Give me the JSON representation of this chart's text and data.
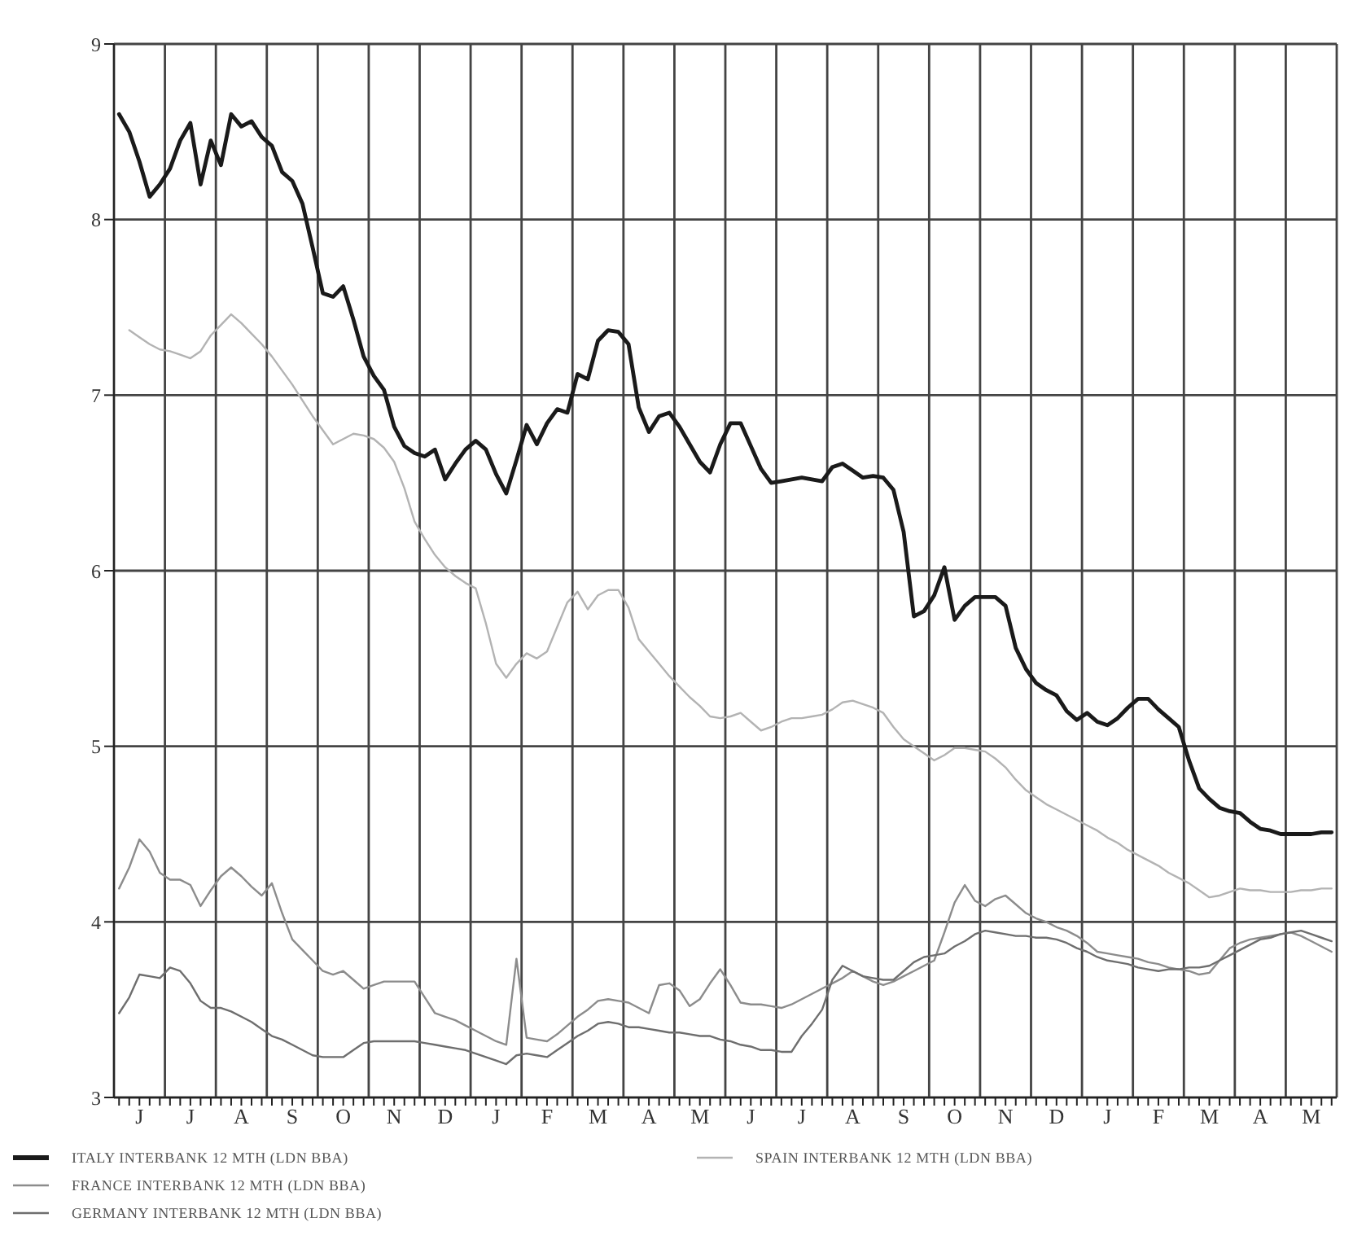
{
  "chart_data": {
    "type": "line",
    "ylim": [
      3,
      9
    ],
    "yticks": [
      3,
      4,
      5,
      6,
      7,
      8,
      9
    ],
    "categories": [
      null,
      null,
      "J",
      null,
      null,
      null,
      null,
      "J",
      null,
      null,
      null,
      null,
      "A",
      null,
      null,
      null,
      null,
      "S",
      null,
      null,
      null,
      null,
      "O",
      null,
      null,
      null,
      null,
      "N",
      null,
      null,
      null,
      null,
      "D",
      null,
      null,
      null,
      null,
      "J",
      null,
      null,
      null,
      null,
      "F",
      null,
      null,
      null,
      null,
      "M",
      null,
      null,
      null,
      null,
      "A",
      null,
      null,
      null,
      null,
      "M",
      null,
      null,
      null,
      null,
      "J",
      null,
      null,
      null,
      null,
      "J",
      null,
      null,
      null,
      null,
      "A",
      null,
      null,
      null,
      null,
      "S",
      null,
      null,
      null,
      null,
      "O",
      null,
      null,
      null,
      null,
      "N",
      null,
      null,
      null,
      null,
      "D",
      null,
      null,
      null,
      null,
      "J",
      null,
      null,
      null,
      null,
      "F",
      null,
      null,
      null,
      null,
      "M",
      null,
      null,
      null,
      null,
      "A",
      null,
      null,
      null,
      null,
      "M",
      null,
      null
    ],
    "grid": true,
    "legend": "bottom",
    "marker": "none",
    "line_style": "solid",
    "series": [
      {
        "name": "ITALY INTERBANK 12 MTH (LDN BBA)",
        "color": "#1a1a1a",
        "values": [
          8.6,
          8.5,
          8.33,
          8.13,
          8.2,
          8.29,
          8.45,
          8.55,
          8.2,
          8.45,
          8.31,
          8.6,
          8.53,
          8.56,
          8.47,
          8.42,
          8.27,
          8.22,
          8.09,
          7.84,
          7.58,
          7.56,
          7.62,
          7.43,
          7.22,
          7.11,
          7.03,
          6.82,
          6.71,
          6.67,
          6.65,
          6.69,
          6.52,
          6.61,
          6.69,
          6.74,
          6.69,
          6.55,
          6.44,
          6.63,
          6.83,
          6.72,
          6.84,
          6.92,
          6.9,
          7.12,
          7.09,
          7.31,
          7.37,
          7.36,
          7.29,
          6.93,
          6.79,
          6.88,
          6.9,
          6.82,
          6.72,
          6.62,
          6.56,
          6.72,
          6.84,
          6.84,
          6.71,
          6.58,
          6.5,
          6.51,
          6.52,
          6.53,
          6.52,
          6.51,
          6.59,
          6.61,
          6.57,
          6.53,
          6.54,
          6.53,
          6.46,
          6.22,
          5.74,
          5.77,
          5.86,
          6.02,
          5.72,
          5.8,
          5.85,
          5.85,
          5.85,
          5.8,
          5.56,
          5.44,
          5.36,
          5.32,
          5.29,
          5.2,
          5.15,
          5.19,
          5.14,
          5.12,
          5.16,
          5.22,
          5.27,
          5.27,
          5.21,
          5.16,
          5.11,
          4.92,
          4.76,
          4.7,
          4.65,
          4.63,
          4.62,
          4.57,
          4.53,
          4.52,
          4.5,
          4.5,
          4.5,
          4.5,
          4.51,
          4.51
        ]
      },
      {
        "name": "FRANCE INTERBANK 12 MTH (LDN BBA)",
        "color": "#8c8c8c",
        "values": [
          4.19,
          4.31,
          4.47,
          4.4,
          4.28,
          4.24,
          4.24,
          4.21,
          4.09,
          4.18,
          4.26,
          4.31,
          4.26,
          4.2,
          4.15,
          4.22,
          4.05,
          3.9,
          3.84,
          3.78,
          3.72,
          3.7,
          3.72,
          3.67,
          3.62,
          3.64,
          3.66,
          3.66,
          3.66,
          3.66,
          3.57,
          3.48,
          3.46,
          3.44,
          3.41,
          3.38,
          3.35,
          3.32,
          3.3,
          3.79,
          3.34,
          3.33,
          3.32,
          3.36,
          3.41,
          3.46,
          3.5,
          3.55,
          3.56,
          3.55,
          3.54,
          3.51,
          3.48,
          3.64,
          3.65,
          3.61,
          3.52,
          3.56,
          3.65,
          3.73,
          3.64,
          3.54,
          3.53,
          3.53,
          3.52,
          3.51,
          3.53,
          3.56,
          3.59,
          3.62,
          3.65,
          3.68,
          3.72,
          3.69,
          3.66,
          3.64,
          3.66,
          3.69,
          3.72,
          3.75,
          3.78,
          3.94,
          4.11,
          4.21,
          4.12,
          4.09,
          4.13,
          4.15,
          4.1,
          4.05,
          4.02,
          4.0,
          3.97,
          3.95,
          3.92,
          3.88,
          3.83,
          3.82,
          3.81,
          3.8,
          3.79,
          3.77,
          3.76,
          3.74,
          3.73,
          3.72,
          3.7,
          3.71,
          3.78,
          3.85,
          3.88,
          3.9,
          3.91,
          3.92,
          3.93,
          3.94,
          3.92,
          3.89,
          3.86,
          3.83
        ]
      },
      {
        "name": "GERMANY INTERBANK 12 MTH (LDN BBA)",
        "color": "#6e6e6e",
        "values": [
          3.48,
          3.57,
          3.7,
          3.69,
          3.68,
          3.74,
          3.72,
          3.65,
          3.55,
          3.51,
          3.51,
          3.49,
          3.46,
          3.43,
          3.39,
          3.35,
          3.33,
          3.3,
          3.27,
          3.24,
          3.23,
          3.23,
          3.23,
          3.27,
          3.31,
          3.32,
          3.32,
          3.32,
          3.32,
          3.32,
          3.31,
          3.3,
          3.29,
          3.28,
          3.27,
          3.25,
          3.23,
          3.21,
          3.19,
          3.24,
          3.25,
          3.24,
          3.23,
          3.27,
          3.31,
          3.35,
          3.38,
          3.42,
          3.43,
          3.42,
          3.4,
          3.4,
          3.39,
          3.38,
          3.37,
          3.37,
          3.36,
          3.35,
          3.35,
          3.33,
          3.32,
          3.3,
          3.29,
          3.27,
          3.27,
          3.26,
          3.26,
          3.35,
          3.42,
          3.5,
          3.67,
          3.75,
          3.72,
          3.69,
          3.68,
          3.67,
          3.67,
          3.72,
          3.77,
          3.8,
          3.81,
          3.82,
          3.86,
          3.89,
          3.93,
          3.95,
          3.94,
          3.93,
          3.92,
          3.92,
          3.91,
          3.91,
          3.9,
          3.88,
          3.85,
          3.83,
          3.8,
          3.78,
          3.77,
          3.76,
          3.74,
          3.73,
          3.72,
          3.73,
          3.73,
          3.74,
          3.74,
          3.75,
          3.78,
          3.81,
          3.84,
          3.87,
          3.9,
          3.91,
          3.93,
          3.94,
          3.95,
          3.93,
          3.91,
          3.89
        ]
      },
      {
        "name": "SPAIN INTERBANK 12 MTH (LDN BBA)",
        "color": "#b3b3b3",
        "values": [
          null,
          7.37,
          7.33,
          7.29,
          7.26,
          7.25,
          7.23,
          7.21,
          7.25,
          7.34,
          7.4,
          7.46,
          7.41,
          7.35,
          7.29,
          7.22,
          7.14,
          7.06,
          6.97,
          6.88,
          6.8,
          6.72,
          6.75,
          6.78,
          6.77,
          6.75,
          6.7,
          6.62,
          6.47,
          6.28,
          6.18,
          6.09,
          6.02,
          5.97,
          5.93,
          5.9,
          5.7,
          5.47,
          5.39,
          5.47,
          5.53,
          5.5,
          5.54,
          5.68,
          5.82,
          5.88,
          5.78,
          5.86,
          5.89,
          5.89,
          5.79,
          5.61,
          5.54,
          5.47,
          5.4,
          5.34,
          5.28,
          5.23,
          5.17,
          5.16,
          5.17,
          5.19,
          5.14,
          5.09,
          5.11,
          5.14,
          5.16,
          5.16,
          5.17,
          5.18,
          5.21,
          5.25,
          5.26,
          5.24,
          5.22,
          5.19,
          5.11,
          5.04,
          5.0,
          4.96,
          4.92,
          4.95,
          4.99,
          4.99,
          4.98,
          4.97,
          4.93,
          4.88,
          4.81,
          4.75,
          4.71,
          4.67,
          4.64,
          4.61,
          4.58,
          4.55,
          4.52,
          4.48,
          4.45,
          4.41,
          4.38,
          4.35,
          4.32,
          4.28,
          4.25,
          4.22,
          4.18,
          4.14,
          4.15,
          4.17,
          4.19,
          4.18,
          4.18,
          4.17,
          4.17,
          4.17,
          4.18,
          4.18,
          4.19,
          4.19
        ]
      }
    ]
  }
}
